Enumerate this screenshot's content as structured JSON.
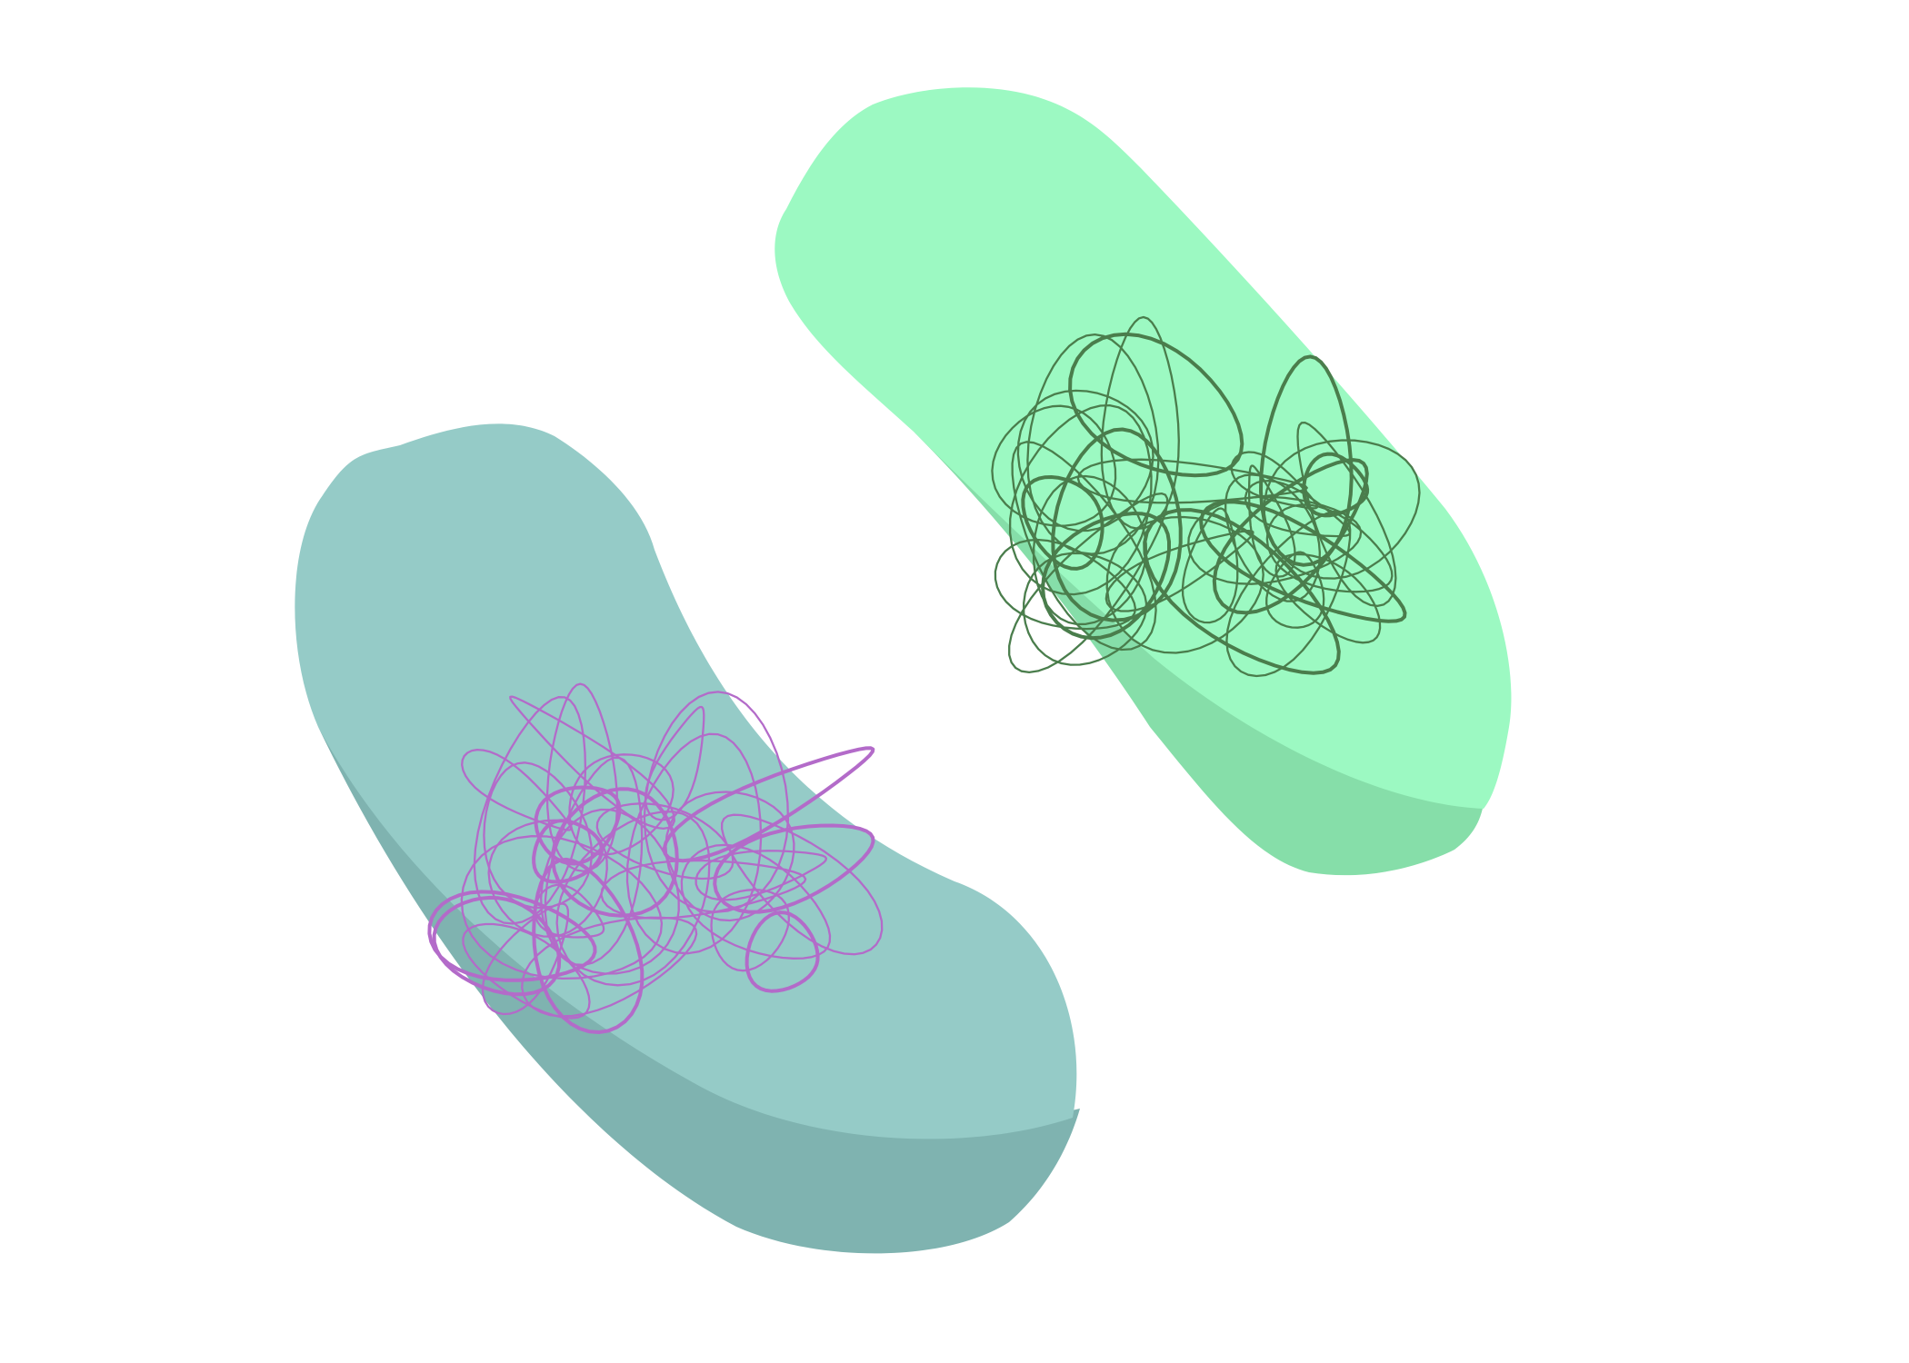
{
  "scene": {
    "background": "#ffffff",
    "cells": [
      {
        "id": "teal-cell",
        "shape": "curved-rod",
        "top_color": "#95cbc7",
        "side_color": "#7fb3b0",
        "scribble_color": "#b36bc9"
      },
      {
        "id": "green-cell",
        "shape": "rod",
        "top_color": "#9cf9c2",
        "side_color": "#86dea9",
        "scribble_color": "#4a7d4c"
      }
    ]
  }
}
